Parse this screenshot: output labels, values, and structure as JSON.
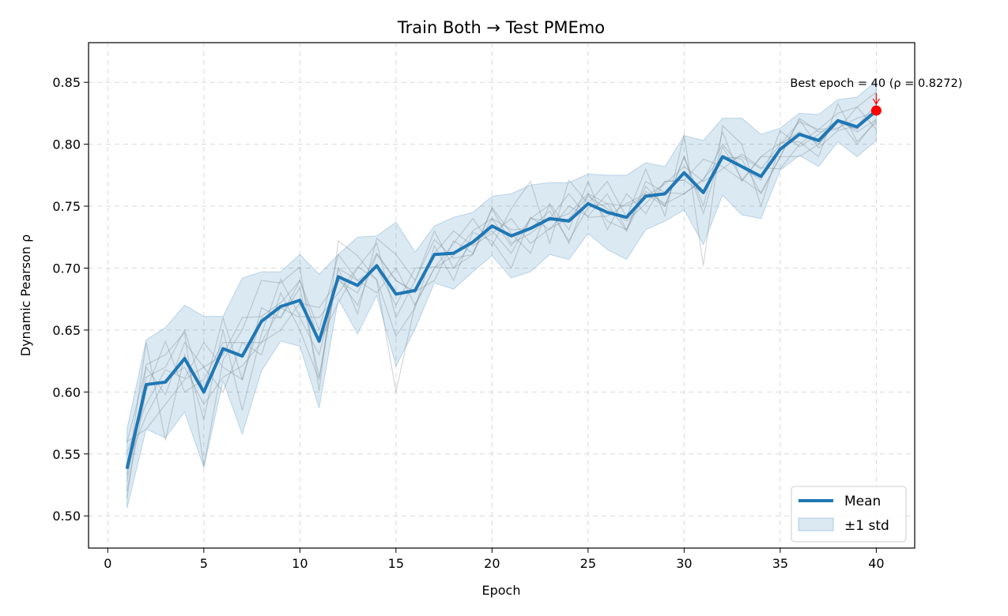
{
  "chart_data": {
    "type": "line",
    "title": "Train Both → Test PMEmo",
    "xlabel": "Epoch",
    "ylabel": "Dynamic Pearson ρ",
    "xlim": [
      -1,
      42
    ],
    "ylim": [
      0.474,
      0.882
    ],
    "xticks": [
      0,
      5,
      10,
      15,
      20,
      25,
      30,
      35,
      40
    ],
    "yticks": [
      0.5,
      0.55,
      0.6,
      0.65,
      0.7,
      0.75,
      0.8,
      0.85
    ],
    "grid": true,
    "legend_position": "lower-right",
    "x": [
      1,
      2,
      3,
      4,
      5,
      6,
      7,
      8,
      9,
      10,
      11,
      12,
      13,
      14,
      15,
      16,
      17,
      18,
      19,
      20,
      21,
      22,
      23,
      24,
      25,
      26,
      27,
      28,
      29,
      30,
      31,
      32,
      33,
      34,
      35,
      36,
      37,
      38,
      39,
      40
    ],
    "series": [
      {
        "name": "Mean",
        "color": "#1f77b4",
        "values": [
          0.538,
          0.606,
          0.608,
          0.627,
          0.6,
          0.635,
          0.629,
          0.657,
          0.669,
          0.674,
          0.641,
          0.693,
          0.686,
          0.702,
          0.679,
          0.682,
          0.711,
          0.712,
          0.721,
          0.734,
          0.726,
          0.732,
          0.74,
          0.738,
          0.752,
          0.745,
          0.741,
          0.758,
          0.76,
          0.777,
          0.761,
          0.79,
          0.782,
          0.774,
          0.796,
          0.808,
          0.803,
          0.819,
          0.814,
          0.827
        ]
      },
      {
        "name": "±1 std",
        "color": "#1f77b4",
        "upper": [
          0.57,
          0.642,
          0.652,
          0.67,
          0.661,
          0.661,
          0.692,
          0.697,
          0.697,
          0.711,
          0.695,
          0.711,
          0.725,
          0.726,
          0.737,
          0.713,
          0.734,
          0.741,
          0.745,
          0.758,
          0.76,
          0.767,
          0.769,
          0.769,
          0.776,
          0.775,
          0.775,
          0.785,
          0.782,
          0.807,
          0.803,
          0.821,
          0.821,
          0.808,
          0.813,
          0.825,
          0.824,
          0.836,
          0.838,
          0.851
        ],
        "lower": [
          0.506,
          0.57,
          0.563,
          0.584,
          0.539,
          0.609,
          0.566,
          0.617,
          0.641,
          0.637,
          0.587,
          0.675,
          0.647,
          0.678,
          0.621,
          0.651,
          0.688,
          0.683,
          0.697,
          0.71,
          0.692,
          0.697,
          0.711,
          0.707,
          0.728,
          0.715,
          0.707,
          0.731,
          0.738,
          0.747,
          0.719,
          0.759,
          0.743,
          0.74,
          0.779,
          0.791,
          0.782,
          0.802,
          0.79,
          0.803
        ]
      }
    ],
    "run_lines": [
      [
        0.514,
        0.622,
        0.63,
        0.648,
        0.54,
        0.626,
        0.65,
        0.69,
        0.688,
        0.701,
        0.601,
        0.722,
        0.71,
        0.69,
        0.6,
        0.671,
        0.7,
        0.72,
        0.74,
        0.718,
        0.748,
        0.77,
        0.72,
        0.771,
        0.752,
        0.77,
        0.741,
        0.78,
        0.742,
        0.808,
        0.702,
        0.815,
        0.8,
        0.75,
        0.8,
        0.818,
        0.812,
        0.825,
        0.83,
        0.842
      ],
      [
        0.551,
        0.59,
        0.618,
        0.611,
        0.64,
        0.62,
        0.61,
        0.668,
        0.66,
        0.684,
        0.612,
        0.7,
        0.663,
        0.724,
        0.711,
        0.69,
        0.723,
        0.708,
        0.711,
        0.749,
        0.728,
        0.712,
        0.752,
        0.731,
        0.77,
        0.731,
        0.76,
        0.744,
        0.77,
        0.771,
        0.788,
        0.782,
        0.771,
        0.79,
        0.801,
        0.802,
        0.79,
        0.833,
        0.802,
        0.818
      ],
      [
        0.533,
        0.64,
        0.561,
        0.63,
        0.578,
        0.65,
        0.585,
        0.647,
        0.691,
        0.661,
        0.66,
        0.68,
        0.701,
        0.691,
        0.645,
        0.668,
        0.718,
        0.69,
        0.729,
        0.722,
        0.7,
        0.741,
        0.731,
        0.75,
        0.742,
        0.76,
        0.731,
        0.766,
        0.75,
        0.79,
        0.744,
        0.798,
        0.772,
        0.761,
        0.79,
        0.82,
        0.797,
        0.811,
        0.815,
        0.832
      ],
      [
        0.52,
        0.601,
        0.641,
        0.6,
        0.61,
        0.64,
        0.64,
        0.64,
        0.65,
        0.672,
        0.668,
        0.69,
        0.68,
        0.712,
        0.69,
        0.681,
        0.69,
        0.722,
        0.712,
        0.74,
        0.731,
        0.732,
        0.746,
        0.722,
        0.749,
        0.752,
        0.75,
        0.758,
        0.768,
        0.782,
        0.77,
        0.78,
        0.792,
        0.781,
        0.78,
        0.8,
        0.812,
        0.813,
        0.821,
        0.826
      ],
      [
        0.559,
        0.62,
        0.598,
        0.64,
        0.62,
        0.63,
        0.66,
        0.661,
        0.672,
        0.69,
        0.65,
        0.711,
        0.69,
        0.7,
        0.67,
        0.7,
        0.701,
        0.7,
        0.722,
        0.73,
        0.712,
        0.74,
        0.738,
        0.744,
        0.76,
        0.738,
        0.731,
        0.77,
        0.761,
        0.76,
        0.771,
        0.8,
        0.781,
        0.771,
        0.811,
        0.798,
        0.808,
        0.82,
        0.81,
        0.82
      ],
      [
        0.542,
        0.581,
        0.61,
        0.62,
        0.59,
        0.612,
        0.621,
        0.64,
        0.668,
        0.66,
        0.63,
        0.692,
        0.67,
        0.711,
        0.69,
        0.68,
        0.712,
        0.73,
        0.718,
        0.728,
        0.74,
        0.72,
        0.732,
        0.74,
        0.758,
        0.748,
        0.738,
        0.752,
        0.77,
        0.771,
        0.76,
        0.788,
        0.79,
        0.78,
        0.8,
        0.81,
        0.8,
        0.818,
        0.812,
        0.83
      ],
      [
        0.528,
        0.612,
        0.62,
        0.65,
        0.6,
        0.66,
        0.61,
        0.66,
        0.66,
        0.69,
        0.64,
        0.672,
        0.7,
        0.72,
        0.66,
        0.69,
        0.73,
        0.7,
        0.711,
        0.748,
        0.72,
        0.728,
        0.74,
        0.76,
        0.741,
        0.742,
        0.752,
        0.76,
        0.75,
        0.79,
        0.75,
        0.81,
        0.77,
        0.79,
        0.79,
        0.821,
        0.81,
        0.812,
        0.83,
        0.812
      ],
      [
        0.56,
        0.57,
        0.59,
        0.61,
        0.62,
        0.6,
        0.64,
        0.63,
        0.68,
        0.65,
        0.61,
        0.7,
        0.69,
        0.68,
        0.7,
        0.67,
        0.7,
        0.71,
        0.73,
        0.74,
        0.718,
        0.74,
        0.751,
        0.72,
        0.76,
        0.752,
        0.73,
        0.762,
        0.752,
        0.76,
        0.772,
        0.79,
        0.788,
        0.76,
        0.79,
        0.79,
        0.8,
        0.82,
        0.8,
        0.82
      ]
    ],
    "annotation": {
      "text": "Best epoch = 40 (ρ = 0.8272)",
      "x": 40,
      "y": 0.8272,
      "marker_color": "#ff0000"
    }
  }
}
